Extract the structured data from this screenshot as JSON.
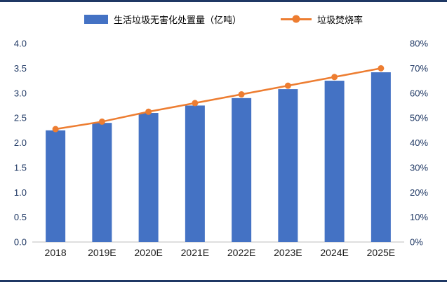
{
  "chart_data": {
    "type": "bar",
    "title": "",
    "categories": [
      "2018",
      "2019E",
      "2020E",
      "2021E",
      "2022E",
      "2023E",
      "2024E",
      "2025E"
    ],
    "series": [
      {
        "name": "生活垃圾无害化处置量（亿吨）",
        "type": "bar",
        "axis": "left",
        "values": [
          2.25,
          2.4,
          2.6,
          2.75,
          2.9,
          3.08,
          3.25,
          3.42
        ]
      },
      {
        "name": "垃圾焚烧率",
        "type": "line",
        "axis": "right",
        "values": [
          45.5,
          48.5,
          52.5,
          56,
          59.5,
          63,
          66.5,
          70
        ]
      }
    ],
    "left_axis": {
      "min": 0,
      "max": 4,
      "step": 0.5,
      "tick_labels": [
        "0.0",
        "0.5",
        "1.0",
        "1.5",
        "2.0",
        "2.5",
        "3.0",
        "3.5",
        "4.0"
      ]
    },
    "right_axis": {
      "min": 0,
      "max": 80,
      "step": 10,
      "tick_labels": [
        "0%",
        "10%",
        "20%",
        "30%",
        "40%",
        "50%",
        "60%",
        "70%",
        "80%"
      ]
    },
    "legend_position": "top",
    "grid": false,
    "colors": {
      "bar": "#4472C4",
      "line": "#ED7D31",
      "axis_text": "#1F3864",
      "category_text": "#1a1a1a",
      "border": "#1F3864",
      "axis_line": "#BFBFBF"
    }
  }
}
